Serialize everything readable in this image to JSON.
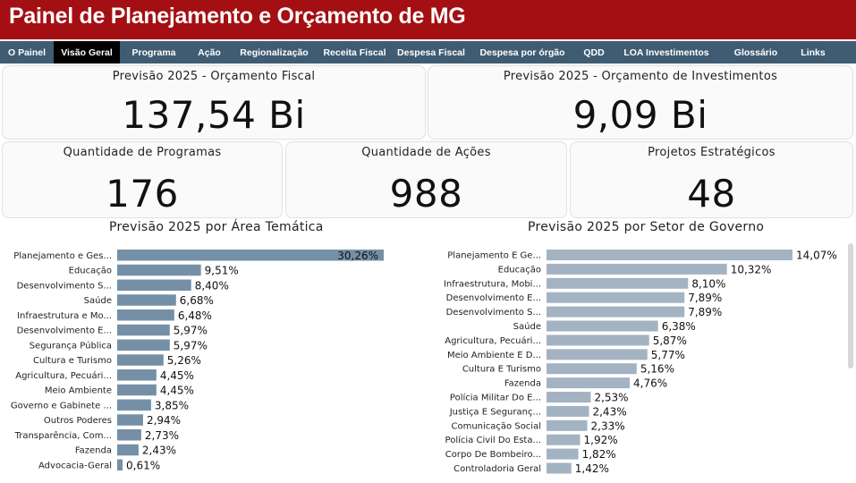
{
  "header": {
    "title": "Painel de Planejamento e Orçamento de MG"
  },
  "nav": {
    "items": [
      {
        "label": "O Painel",
        "active": false
      },
      {
        "label": "Visão Geral",
        "active": true
      },
      {
        "label": "Programa",
        "active": false
      },
      {
        "label": "Ação",
        "active": false
      },
      {
        "label": "Regionalização",
        "active": false
      },
      {
        "label": "Receita Fiscal",
        "active": false
      },
      {
        "label": "Despesa Fiscal",
        "active": false
      },
      {
        "label": "Despesa por órgão",
        "active": false
      },
      {
        "label": "QDD",
        "active": false
      },
      {
        "label": "LOA Investimentos",
        "active": false
      },
      {
        "label": "Glossário",
        "active": false
      },
      {
        "label": "Links",
        "active": false
      }
    ]
  },
  "cards": {
    "orcamento_fiscal": {
      "label": "Previsão 2025 - Orçamento Fiscal",
      "value": "137,54 Bi"
    },
    "orcamento_investimentos": {
      "label": "Previsão 2025 - Orçamento de Investimentos",
      "value": "9,09 Bi"
    },
    "programas": {
      "label": "Quantidade de Programas",
      "value": "176"
    },
    "acoes": {
      "label": "Quantidade de Ações",
      "value": "988"
    },
    "projetos": {
      "label": "Projetos Estratégicos",
      "value": "48"
    }
  },
  "colors": {
    "header": "#a30f12",
    "nav": "#3f5c73",
    "nav_active": "#000000",
    "bar_left": "#7590a6",
    "bar_right": "#a3b3c2"
  },
  "chart_data": [
    {
      "type": "bar",
      "orientation": "horizontal",
      "title": "Previsão 2025 por Área Temática",
      "categories": [
        "Planejamento e Ges...",
        "Educação",
        "Desenvolvimento S...",
        "Saúde",
        "Infraestrutura e Mo...",
        "Desenvolvimento E...",
        "Segurança Pública",
        "Cultura e Turismo",
        "Agricultura, Pecuári...",
        "Meio Ambiente",
        "Governo e Gabinete ...",
        "Outros Poderes",
        "Transparência, Com...",
        "Fazenda",
        "Advocacia-Geral"
      ],
      "values": [
        30.26,
        9.51,
        8.4,
        6.68,
        6.48,
        5.97,
        5.97,
        5.26,
        4.45,
        4.45,
        3.85,
        2.94,
        2.73,
        2.43,
        0.61
      ],
      "labels": [
        "30,26%",
        "9,51%",
        "8,40%",
        "6,68%",
        "6,48%",
        "5,97%",
        "5,97%",
        "5,26%",
        "4,45%",
        "4,45%",
        "3,85%",
        "2,94%",
        "2,73%",
        "2,43%",
        "0,61%"
      ],
      "xlim": [
        0,
        30.26
      ]
    },
    {
      "type": "bar",
      "orientation": "horizontal",
      "title": "Previsão 2025 por Setor de Governo",
      "categories": [
        "Planejamento E Ge...",
        "Educação",
        "Infraestrutura, Mobi...",
        "Desenvolvimento E...",
        "Desenvolvimento S...",
        "Saúde",
        "Agricultura, Pecuári...",
        "Meio Ambiente E D...",
        "Cultura E Turismo",
        "Fazenda",
        "Polícia Militar Do E...",
        "Justiça E Seguranç...",
        "Comunicação Social",
        "Polícia Civil Do Esta...",
        "Corpo De Bombeiro...",
        "Controladoria Geral"
      ],
      "values": [
        14.07,
        10.32,
        8.1,
        7.89,
        7.89,
        6.38,
        5.87,
        5.77,
        5.16,
        4.76,
        2.53,
        2.43,
        2.33,
        1.92,
        1.82,
        1.42
      ],
      "labels": [
        "14,07%",
        "10,32%",
        "8,10%",
        "7,89%",
        "7,89%",
        "6,38%",
        "5,87%",
        "5,77%",
        "5,16%",
        "4,76%",
        "2,53%",
        "2,43%",
        "2,33%",
        "1,92%",
        "1,82%",
        "1,42%"
      ],
      "xlim": [
        0,
        14.07
      ]
    }
  ]
}
